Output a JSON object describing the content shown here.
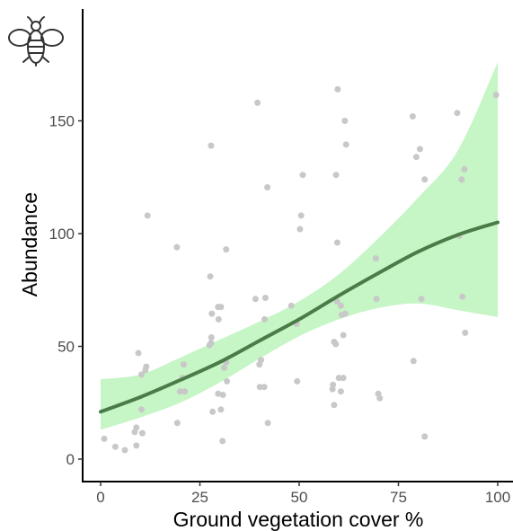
{
  "chart_data": {
    "type": "scatter",
    "xlabel": "Ground vegetation cover %",
    "ylabel": "Abundance",
    "xlim": [
      -5,
      102
    ],
    "ylim": [
      -10,
      198
    ],
    "x_ticks": [
      0,
      25,
      50,
      75,
      100
    ],
    "y_ticks": [
      0,
      50,
      100,
      150
    ],
    "grid": false,
    "icon": "bee-icon",
    "colors": {
      "points": "#c8c8c8",
      "trend_line": "#4a7c47",
      "confidence_band": "#c6f5c6",
      "axis": "#000000"
    },
    "points": [
      [
        0.9,
        9
      ],
      [
        3.7,
        5.5
      ],
      [
        6.1,
        4
      ],
      [
        8.6,
        12
      ],
      [
        9,
        14
      ],
      [
        9,
        6
      ],
      [
        9.5,
        47
      ],
      [
        10.3,
        22
      ],
      [
        10.3,
        37.5
      ],
      [
        10.5,
        11.5
      ],
      [
        11.3,
        39.5
      ],
      [
        11.5,
        41
      ],
      [
        11.8,
        108
      ],
      [
        19.2,
        94
      ],
      [
        19.3,
        16
      ],
      [
        20,
        30
      ],
      [
        20.6,
        36
      ],
      [
        20.9,
        42
      ],
      [
        21.2,
        30
      ],
      [
        27.4,
        50.5
      ],
      [
        27.6,
        81
      ],
      [
        27.8,
        139
      ],
      [
        27.8,
        51.5
      ],
      [
        27.9,
        54
      ],
      [
        28,
        64.5
      ],
      [
        28.2,
        21
      ],
      [
        29.6,
        29
      ],
      [
        29.6,
        67.5
      ],
      [
        29.7,
        62
      ],
      [
        30.3,
        67.5
      ],
      [
        30.3,
        22
      ],
      [
        30.7,
        8
      ],
      [
        30.8,
        28.5
      ],
      [
        31.1,
        40.5
      ],
      [
        31.6,
        43
      ],
      [
        31.6,
        93
      ],
      [
        31.8,
        34.5
      ],
      [
        39,
        71
      ],
      [
        39.5,
        158
      ],
      [
        40,
        42
      ],
      [
        40.1,
        32
      ],
      [
        40.4,
        44
      ],
      [
        41.2,
        32
      ],
      [
        41.3,
        62
      ],
      [
        41.5,
        71.5
      ],
      [
        42,
        120.5
      ],
      [
        42.1,
        16
      ],
      [
        48,
        68
      ],
      [
        49.4,
        60
      ],
      [
        49.5,
        34.5
      ],
      [
        50.2,
        102
      ],
      [
        50.5,
        108
      ],
      [
        50.9,
        126
      ],
      [
        58.4,
        31
      ],
      [
        58.5,
        33
      ],
      [
        58.8,
        24
      ],
      [
        58.8,
        52
      ],
      [
        59.2,
        51
      ],
      [
        59.3,
        126
      ],
      [
        59.5,
        70
      ],
      [
        59.6,
        96
      ],
      [
        59.7,
        164
      ],
      [
        60,
        36
      ],
      [
        60.5,
        30
      ],
      [
        60.5,
        68
      ],
      [
        60.7,
        64
      ],
      [
        61.1,
        36
      ],
      [
        61.1,
        55
      ],
      [
        61.5,
        150
      ],
      [
        61.6,
        64.5
      ],
      [
        61.8,
        139.5
      ],
      [
        69.3,
        89
      ],
      [
        69.5,
        71
      ],
      [
        69.9,
        29
      ],
      [
        70.3,
        27
      ],
      [
        78.6,
        152
      ],
      [
        78.8,
        43.5
      ],
      [
        79.5,
        134
      ],
      [
        80.4,
        137.5
      ],
      [
        80.8,
        71
      ],
      [
        81.6,
        10
      ],
      [
        81.6,
        124
      ],
      [
        89.8,
        153.5
      ],
      [
        90.3,
        99
      ],
      [
        90.9,
        124
      ],
      [
        91.1,
        72
      ],
      [
        91.6,
        128.5
      ],
      [
        91.8,
        56
      ],
      [
        99.6,
        161.5
      ]
    ],
    "trend": {
      "x": [
        0,
        10,
        20,
        30,
        40,
        50,
        60,
        70,
        80,
        90,
        100
      ],
      "y": [
        21,
        27.5,
        35,
        43,
        52.5,
        62,
        72.5,
        82.5,
        92,
        99.5,
        105
      ]
    },
    "confidence_band": {
      "x": [
        0,
        10,
        20,
        30,
        40,
        50,
        60,
        70,
        80,
        90,
        100
      ],
      "lower": [
        13,
        18.5,
        25,
        34,
        44.5,
        54.5,
        62,
        67,
        69,
        66,
        63
      ],
      "upper": [
        35.5,
        37.5,
        45,
        53,
        61,
        70,
        82,
        98,
        116,
        137,
        176
      ]
    }
  }
}
